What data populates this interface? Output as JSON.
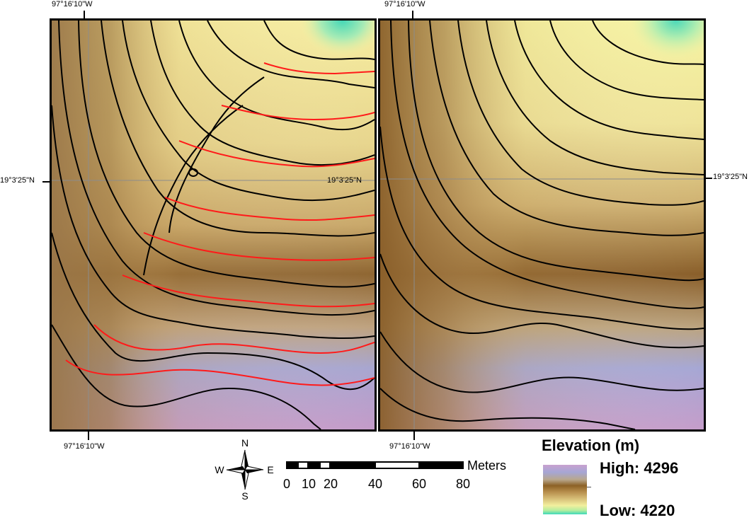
{
  "map": {
    "coordinates": {
      "top_left": "97°16'10\"W",
      "top_right": "97°16'10\"W",
      "bottom_left": "97°16'10\"W",
      "bottom_right": "97°16'10\"W",
      "left_lat": "19°3'25\"N",
      "mid_lat": "19°3'25\"N",
      "right_lat": "19°3'25\"N"
    },
    "north_arrow": {
      "n": "N",
      "s": "S",
      "e": "E",
      "w": "W"
    },
    "scale_bar": {
      "unit": "Meters",
      "labels": [
        "0",
        "10",
        "20",
        "40",
        "60",
        "80"
      ],
      "label_values": [
        0,
        10,
        20,
        40,
        60,
        80
      ]
    },
    "legend": {
      "title": "Elevation (m)",
      "high": "High: 4296",
      "low": "Low: 4220",
      "high_value": 4296,
      "low_value": 4220
    },
    "colors": {
      "contour_primary": "#000000",
      "contour_comparison": "#ff1a1a",
      "graticule": "#8c8c8c"
    }
  }
}
